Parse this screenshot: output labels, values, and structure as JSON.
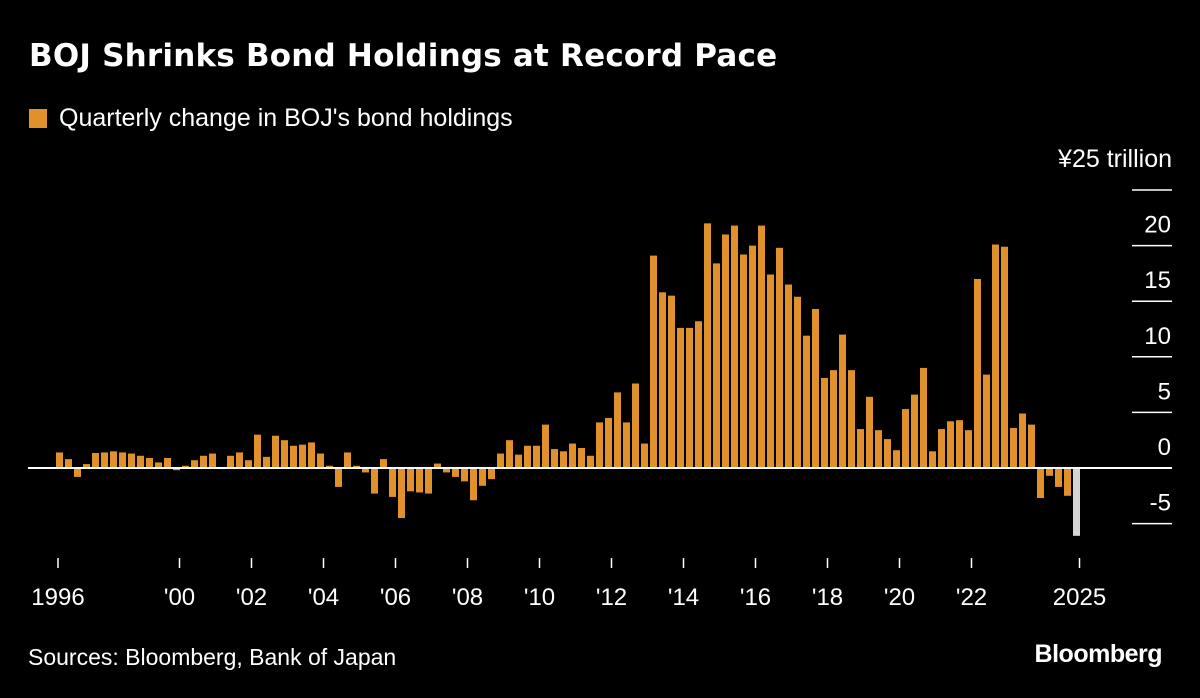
{
  "header": {
    "title": "BOJ Shrinks Bond Holdings at Record Pace",
    "legend_label": "Quarterly change in BOJ's bond holdings"
  },
  "footer": {
    "source": "Sources: Bloomberg, Bank of Japan",
    "brand": "Bloomberg"
  },
  "colors": {
    "bar": "#e0912c",
    "latest_bar": "#d4d4d4",
    "background": "#000000",
    "text": "#ffffff"
  },
  "chart_data": {
    "type": "bar",
    "title": "BOJ Shrinks Bond Holdings at Record Pace",
    "legend": [
      "Quarterly change in BOJ's bond holdings"
    ],
    "legend_position": "top-left",
    "unit_label": "¥25 trillion",
    "xlabel": "",
    "ylabel": "",
    "ylim": [
      -7.5,
      25
    ],
    "y_ticks": [
      25,
      20,
      15,
      10,
      5,
      0,
      -5
    ],
    "y_tick_labels": [
      "20",
      "15",
      "10",
      "5",
      "0",
      "-5"
    ],
    "x_tick_labels": [
      {
        "label": "1996",
        "quarter_index": 0
      },
      {
        "label": "'00",
        "quarter_index": 13.5
      },
      {
        "label": "'02",
        "quarter_index": 21.5
      },
      {
        "label": "'04",
        "quarter_index": 29.5
      },
      {
        "label": "'06",
        "quarter_index": 37.5
      },
      {
        "label": "'08",
        "quarter_index": 45.5
      },
      {
        "label": "'10",
        "quarter_index": 53.5
      },
      {
        "label": "'12",
        "quarter_index": 61.5
      },
      {
        "label": "'14",
        "quarter_index": 69.5
      },
      {
        "label": "'16",
        "quarter_index": 77.5
      },
      {
        "label": "'18",
        "quarter_index": 85.5
      },
      {
        "label": "'20",
        "quarter_index": 93.5
      },
      {
        "label": "'22",
        "quarter_index": 101.5
      },
      {
        "label": "2025",
        "quarter_index": 113.5
      }
    ],
    "first_quarter": "1996 Q3",
    "last_quarter": "2024 Q4",
    "highlight_last": true,
    "values": [
      1.4,
      0.8,
      -0.8,
      0.35,
      1.35,
      1.4,
      1.5,
      1.4,
      1.3,
      1.1,
      0.9,
      0.5,
      0.9,
      -0.2,
      0.2,
      0.7,
      1.1,
      1.3,
      -0.1,
      1.1,
      1.4,
      0.7,
      3.0,
      1.0,
      2.9,
      2.5,
      2.0,
      2.1,
      2.3,
      1.3,
      0.2,
      -1.7,
      1.4,
      0.2,
      -0.4,
      -2.3,
      0.8,
      -2.6,
      -4.5,
      -2.1,
      -2.2,
      -2.3,
      0.4,
      -0.4,
      -0.8,
      -1.2,
      -2.9,
      -1.6,
      -1.0,
      1.3,
      2.5,
      1.2,
      2.0,
      2.0,
      3.9,
      1.7,
      1.5,
      2.2,
      1.8,
      1.1,
      4.1,
      4.5,
      6.8,
      4.1,
      7.6,
      2.2,
      19.1,
      15.8,
      15.5,
      12.6,
      12.6,
      13.2,
      22.0,
      18.4,
      21.0,
      21.8,
      19.2,
      20.0,
      21.8,
      17.4,
      19.8,
      16.5,
      15.4,
      11.9,
      14.3,
      8.1,
      8.8,
      12.0,
      8.8,
      3.5,
      6.4,
      3.4,
      2.6,
      1.6,
      5.3,
      6.6,
      9.0,
      1.5,
      3.5,
      4.2,
      4.3,
      3.4,
      17.0,
      8.4,
      20.1,
      19.9,
      3.6,
      4.9,
      3.9,
      -2.7,
      -0.7,
      -1.7,
      -2.5,
      -6.1
    ]
  }
}
